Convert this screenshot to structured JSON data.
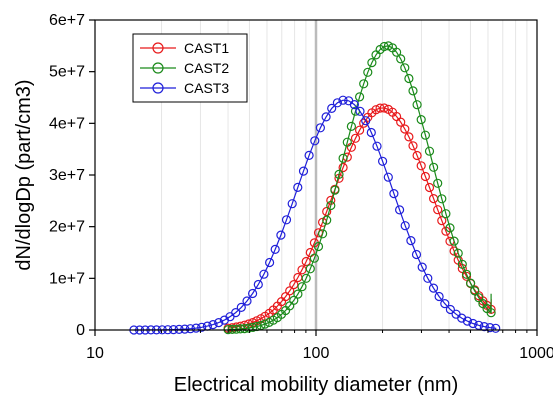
{
  "chart_data": {
    "type": "scatter",
    "xlabel": "Electrical mobility diameter (nm)",
    "ylabel": "dN/dlogDp (part/cm3)",
    "xscale": "log",
    "xlim": [
      10,
      1000
    ],
    "ylim": [
      0,
      60000000
    ],
    "x_ticks": [
      {
        "value": 10,
        "label": "10"
      },
      {
        "value": 100,
        "label": "100"
      },
      {
        "value": 1000,
        "label": "1000"
      }
    ],
    "y_ticks": [
      {
        "value": 0,
        "label": "0"
      },
      {
        "value": 10000000,
        "label": "1e+7"
      },
      {
        "value": 20000000,
        "label": "2e+7"
      },
      {
        "value": 30000000,
        "label": "3e+7"
      },
      {
        "value": 40000000,
        "label": "4e+7"
      },
      {
        "value": 50000000,
        "label": "5e+7"
      },
      {
        "value": 60000000,
        "label": "6e+7"
      }
    ],
    "grid": "vertical minor gridlines on log x axis",
    "reference_line": {
      "x": 100,
      "color": "#bbbbbb"
    },
    "legend_position": "top-left",
    "marker": "open-circle",
    "series": [
      {
        "name": "CAST1",
        "color": "#e8191b",
        "mode": 200,
        "gsd": 1.68,
        "peak": 43000000,
        "x_start": 40,
        "x_end": 620,
        "end_value": 6000000
      },
      {
        "name": "CAST2",
        "color": "#1a8a1a",
        "mode": 210,
        "gsd": 1.58,
        "peak": 55000000,
        "x_start": 40,
        "x_end": 620,
        "end_value": 7000000
      },
      {
        "name": "CAST3",
        "color": "#1f1fd9",
        "mode": 135,
        "gsd": 1.65,
        "peak": 44500000,
        "x_start": 15,
        "x_end": 650,
        "end_value": 0
      }
    ]
  }
}
